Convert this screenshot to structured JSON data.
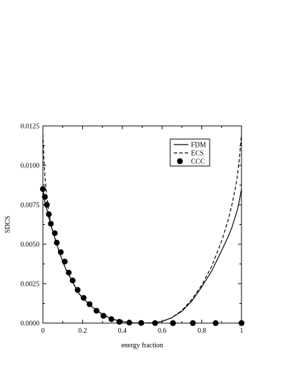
{
  "chart_data": {
    "type": "line",
    "xlabel": "energy fraction",
    "ylabel": "SDCS",
    "xlim": [
      0,
      1
    ],
    "ylim": [
      0,
      0.0125
    ],
    "x_ticks": [
      0,
      0.2,
      0.4,
      0.6,
      0.8,
      1
    ],
    "x_tick_labels": [
      "0",
      "0.2",
      "0.4",
      "0.6",
      "0.8",
      "1"
    ],
    "y_ticks": [
      0,
      0.0025,
      0.005,
      0.0075,
      0.01,
      0.0125
    ],
    "y_tick_labels": [
      "0.0000",
      "0.0025",
      "0.0050",
      "0.0075",
      "0.0100",
      "0.0125"
    ],
    "legend_position": "top-right",
    "series": [
      {
        "name": "FDM",
        "style": "solid",
        "color": "#000000",
        "x": [
          0,
          0.005,
          0.01,
          0.02,
          0.03,
          0.04,
          0.05,
          0.06,
          0.08,
          0.1,
          0.12,
          0.15,
          0.18,
          0.2,
          0.25,
          0.3,
          0.35,
          0.4,
          0.45,
          0.5,
          0.55,
          0.6,
          0.65,
          0.7,
          0.75,
          0.8,
          0.85,
          0.9,
          0.93,
          0.95,
          0.97,
          0.98,
          0.99,
          1.0
        ],
        "y": [
          0.0085,
          0.0081,
          0.0077,
          0.0072,
          0.0067,
          0.0062,
          0.0058,
          0.0054,
          0.0046,
          0.0039,
          0.0033,
          0.0026,
          0.0019,
          0.0016,
          0.001,
          0.00055,
          0.00025,
          0.0001,
          2e-05,
          0.0,
          2e-05,
          0.0001,
          0.00035,
          0.00075,
          0.0014,
          0.0023,
          0.0033,
          0.0046,
          0.0054,
          0.006,
          0.0068,
          0.0072,
          0.0078,
          0.0085
        ]
      },
      {
        "name": "ECS",
        "style": "dashed",
        "color": "#000000",
        "x": [
          0,
          0.005,
          0.01,
          0.02,
          0.03,
          0.04,
          0.05,
          0.06,
          0.08,
          0.1,
          0.12,
          0.15,
          0.18,
          0.2,
          0.25,
          0.3,
          0.35,
          0.4,
          0.45,
          0.5,
          0.55,
          0.6,
          0.65,
          0.7,
          0.75,
          0.8,
          0.85,
          0.9,
          0.93,
          0.95,
          0.97,
          0.98,
          0.99,
          1.0
        ],
        "y": [
          0.012,
          0.0105,
          0.0093,
          0.008,
          0.007,
          0.0063,
          0.0058,
          0.0054,
          0.0046,
          0.0039,
          0.0033,
          0.0026,
          0.0019,
          0.0016,
          0.001,
          0.00055,
          0.00025,
          0.0001,
          2e-05,
          0.0,
          2e-05,
          0.0001,
          0.00035,
          0.0008,
          0.0015,
          0.0024,
          0.0036,
          0.0052,
          0.0064,
          0.0074,
          0.0086,
          0.0094,
          0.0105,
          0.012
        ]
      },
      {
        "name": "CCC",
        "style": "markers",
        "color": "#000000",
        "x": [
          0,
          0.01,
          0.02,
          0.03,
          0.04,
          0.06,
          0.07,
          0.09,
          0.11,
          0.13,
          0.15,
          0.175,
          0.205,
          0.235,
          0.27,
          0.305,
          0.345,
          0.385,
          0.435,
          0.495,
          0.565,
          0.655,
          0.755,
          0.87,
          1.0
        ],
        "y": [
          0.0085,
          0.008,
          0.0075,
          0.0069,
          0.0063,
          0.0057,
          0.0051,
          0.0045,
          0.0039,
          0.0032,
          0.0027,
          0.0021,
          0.0016,
          0.0012,
          0.00078,
          0.00046,
          0.00025,
          8e-05,
          3e-05,
          1e-05,
          0.0,
          0.0,
          0.0,
          0.0,
          0.0
        ]
      }
    ]
  }
}
